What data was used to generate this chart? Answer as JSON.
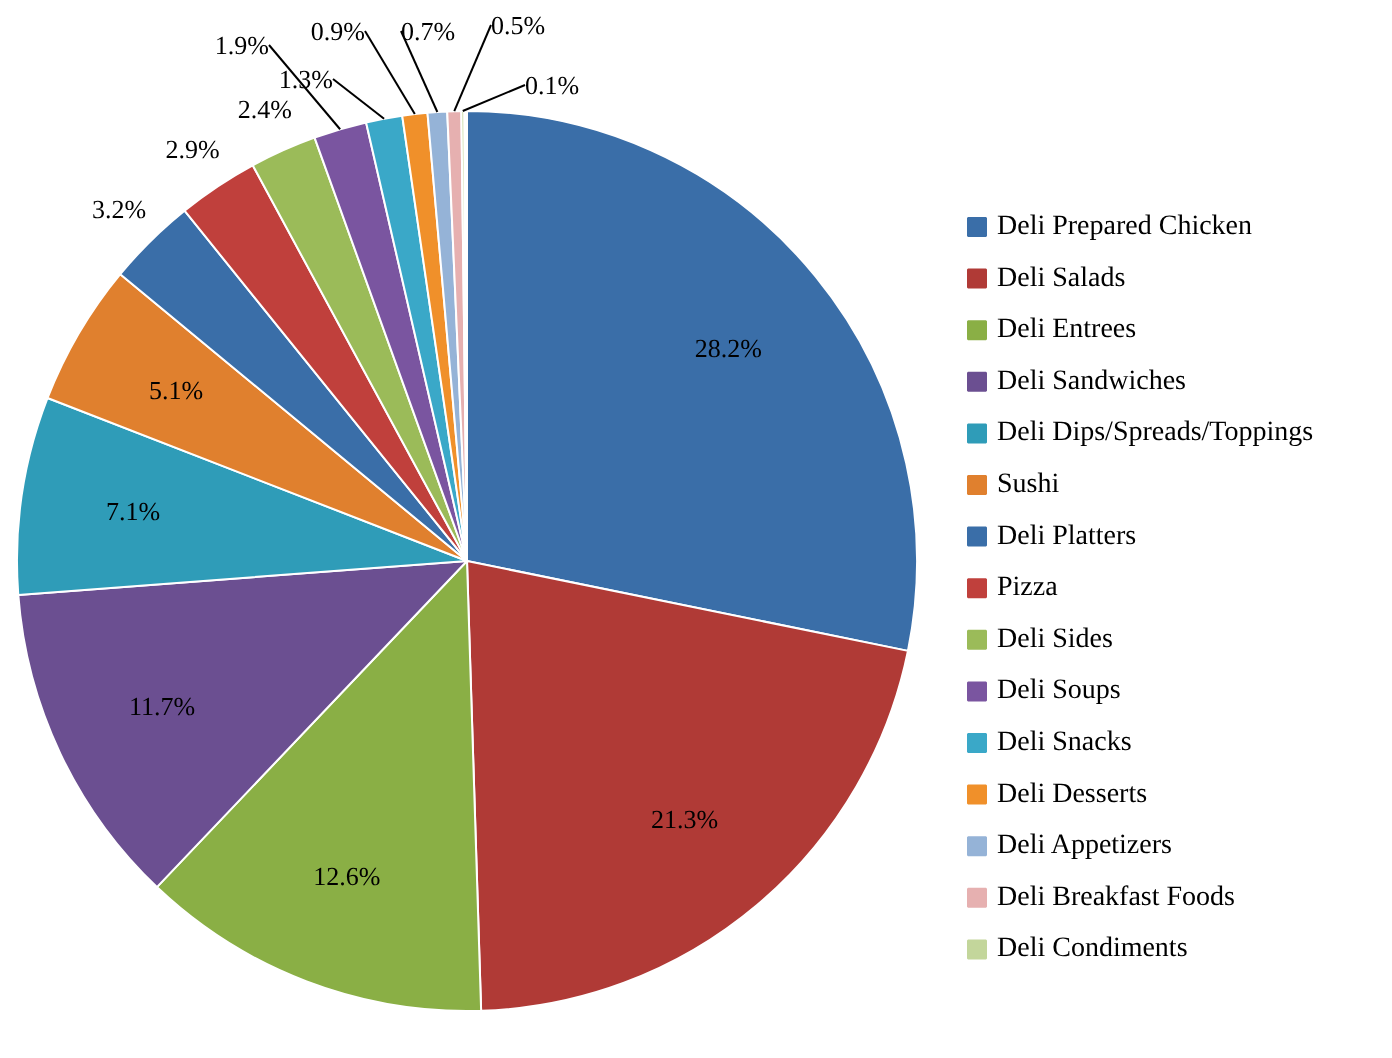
{
  "chart_data": {
    "type": "pie",
    "legend": "right",
    "categories": [
      "Deli Prepared Chicken",
      "Deli Salads",
      "Deli Entrees",
      "Deli Sandwiches",
      "Deli Dips/Spreads/Toppings",
      "Sushi",
      "Deli Platters",
      "Pizza",
      "Deli Sides",
      "Deli Soups",
      "Deli Snacks",
      "Deli Desserts",
      "Deli Appetizers",
      "Deli Breakfast Foods",
      "Deli Condiments"
    ],
    "values": [
      28.2,
      21.3,
      12.6,
      11.7,
      7.1,
      5.1,
      3.2,
      2.9,
      2.4,
      1.9,
      1.3,
      0.9,
      0.7,
      0.5,
      0.1
    ],
    "value_labels": [
      "28.2%",
      "21.3%",
      "12.6%",
      "11.7%",
      "7.1%",
      "5.1%",
      "3.2%",
      "2.9%",
      "2.4%",
      "1.9%",
      "1.3%",
      "0.9%",
      "0.7%",
      "0.5%",
      "0.1%"
    ],
    "colors": [
      "#3a6ea8",
      "#b03a36",
      "#8aaf45",
      "#6b4f91",
      "#2f9cb8",
      "#e0802e",
      "#3a6ea8",
      "#c0403c",
      "#9bbb59",
      "#7a55a0",
      "#3aa8c8",
      "#f0902a",
      "#95b3d7",
      "#e6b0b0",
      "#c3d69b"
    ]
  }
}
